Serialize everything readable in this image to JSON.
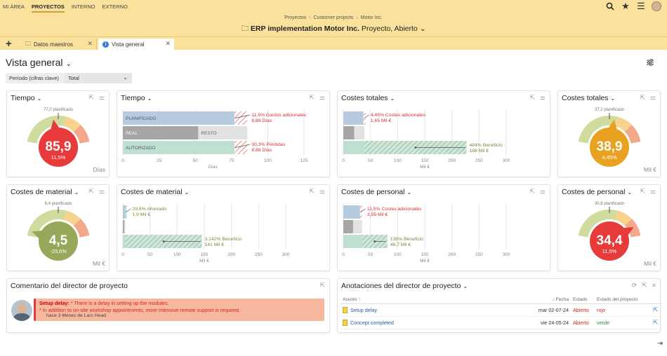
{
  "topnav": {
    "items": [
      "MI ÁREA",
      "PROYECTOS",
      "INTERNO",
      "EXTERNO"
    ],
    "active": "PROYECTOS"
  },
  "header": {
    "breadcrumb": [
      "Proyectos",
      "Customer projects",
      "Motor Inc."
    ],
    "title_bold": "ERP implementation Motor Inc.",
    "title_rest": "Proyecto, Abierto"
  },
  "tabs": [
    {
      "label": "Datos maestros",
      "icon": "folder-icon",
      "active": false
    },
    {
      "label": "Vista general",
      "icon": "info-icon",
      "active": true
    }
  ],
  "page": {
    "title": "Vista general",
    "period_label": "Período (cifras clave)",
    "period_value": "Total"
  },
  "colors": {
    "red": "#e73a3a",
    "orange": "#e9a120",
    "olive": "#98a85a",
    "green_hatch": "#8fc4a6",
    "blue_plan": "#b6cbe0",
    "gray_real": "#a6a6a6"
  },
  "gauges": [
    {
      "id": "tiempo",
      "title": "Tiempo",
      "value": "85,9",
      "percent": "11,5%",
      "planned": "77,0 planificado",
      "unit": "Días",
      "color": "#e73a3a"
    },
    {
      "id": "costes-totales",
      "title": "Costes totales",
      "value": "38,9",
      "percent": "4,45%",
      "planned": "37,2 planificado",
      "unit": "Mil €",
      "color": "#e9a120"
    },
    {
      "id": "costes-material",
      "title": "Costes de material",
      "value": "4,5",
      "percent": "-29,6%",
      "planned": "6,4 planificado",
      "unit": "Mil €",
      "color": "#98a85a"
    },
    {
      "id": "costes-personal",
      "title": "Costes de personal",
      "value": "34,4",
      "percent": "11,5%",
      "planned": "30,8 planificado",
      "unit": "Mil €",
      "color": "#e73a3a"
    }
  ],
  "chart_data": [
    {
      "type": "bar",
      "title": "Tiempo",
      "xlabel": "Días",
      "xlim": [
        0,
        125
      ],
      "ticks": [
        0,
        25,
        50,
        75,
        100,
        125
      ],
      "rows": [
        {
          "label": "PLANIFICADO",
          "value": 77.0,
          "extra": 8.88
        },
        {
          "label": "REAL",
          "value": 52,
          "rest_label": "RESTO",
          "rest": 33.9
        },
        {
          "label": "AUTORIZADO",
          "value": 77.0,
          "extra": 8.88
        }
      ],
      "annotations": [
        {
          "lines": [
            "11,5% Gastos adicionales",
            "8,88 Días"
          ],
          "row": 0
        },
        {
          "lines": [
            "10,3% Pérdidas",
            "8,88 Días"
          ],
          "row": 2
        }
      ]
    },
    {
      "type": "bar",
      "title": "Costes totales",
      "xlabel": "Mil €",
      "xlim": [
        0,
        300
      ],
      "ticks": [
        0,
        50,
        100,
        150,
        200,
        250,
        300
      ],
      "rows": [
        {
          "value": 37.2,
          "extra": 1.65
        },
        {
          "value": 20,
          "rest": 18.9
        },
        {
          "value": 38.9,
          "benefit": 188
        }
      ],
      "annotations": [
        {
          "lines": [
            "4,45% Costes adicionales",
            "1,65 Mil €"
          ],
          "row": 0
        },
        {
          "lines": [
            "484% Beneficio",
            "188 Mil €"
          ],
          "row": 2
        }
      ]
    },
    {
      "type": "bar",
      "title": "Costes de material",
      "xlabel": "Mil €",
      "xlim": [
        0,
        300
      ],
      "ticks": [
        0,
        50,
        100,
        150,
        200,
        250,
        300
      ],
      "rows": [
        {
          "value": 4.5,
          "saved": 1.9
        },
        {
          "value": 2.5,
          "rest": 2
        },
        {
          "value": 4.5,
          "benefit": 141
        }
      ],
      "annotations": [
        {
          "lines": [
            "29,6% Ahorrado",
            "1,9 Mil €"
          ],
          "row": 0
        },
        {
          "lines": [
            "3.142% Beneficio",
            "141 Mil €"
          ],
          "row": 2
        }
      ]
    },
    {
      "type": "bar",
      "title": "Costes de personal",
      "xlabel": "Mil €",
      "xlim": [
        0,
        300
      ],
      "ticks": [
        0,
        50,
        100,
        150,
        200,
        250,
        300
      ],
      "rows": [
        {
          "value": 30.8,
          "extra": 3.55
        },
        {
          "value": 18,
          "rest": 16.4
        },
        {
          "value": 34.4,
          "benefit": 46.7
        }
      ],
      "annotations": [
        {
          "lines": [
            "11,5% Costes adicionales",
            "3,55 Mil €"
          ],
          "row": 0
        },
        {
          "lines": [
            "136% Beneficio",
            "46,7 Mil €"
          ],
          "row": 2
        }
      ]
    }
  ],
  "comment": {
    "title": "Comentario del director de proyecto",
    "lead": "Setup delay:",
    "line1": " * There is a delay in setting up the modules.",
    "line2": "* In addition to on-site workshop appointments, more intensive remote support is required.",
    "meta": "hace 3 Meses de Lars Head"
  },
  "annotations_card": {
    "title": "Anotaciones del director de proyecto",
    "columns": [
      "Asunto",
      "Fecha",
      "Estado",
      "Estado del proyecto"
    ],
    "rows": [
      {
        "subject": "Setup delay",
        "date": "mar 02-07-24",
        "status": "Abierto",
        "project_status": "rojo"
      },
      {
        "subject": "Concept completed",
        "date": "vie 24-05-24",
        "status": "Abierto",
        "project_status": "verde"
      }
    ]
  }
}
